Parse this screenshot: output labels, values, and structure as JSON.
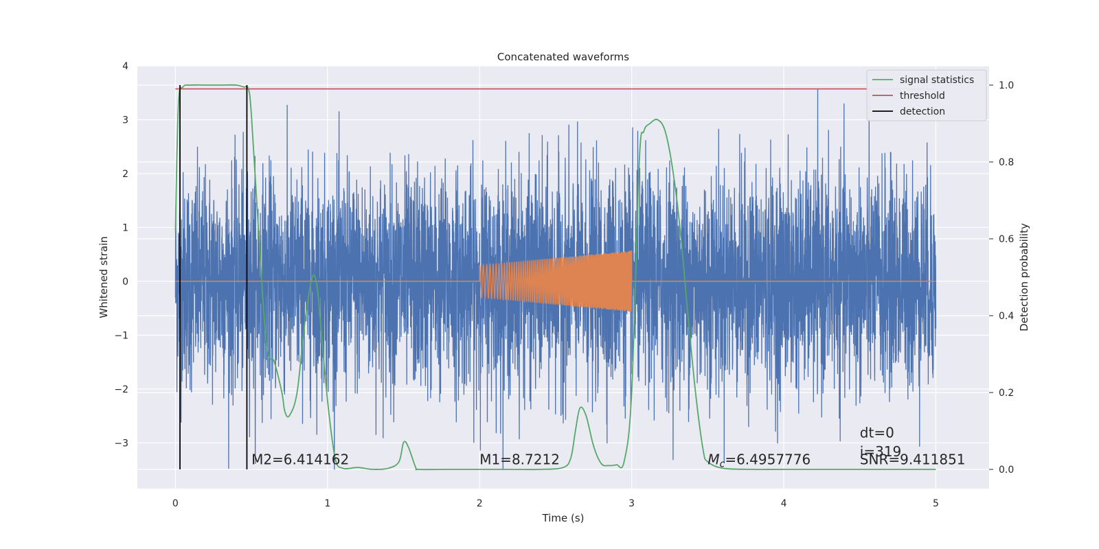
{
  "chart_data": {
    "type": "line",
    "title": "Concatenated waveforms",
    "xlabel": "Time (s)",
    "ylabel": "Whitened strain",
    "y2label": "Detection probability",
    "xlim": [
      -0.25,
      5.35
    ],
    "ylim": [
      -3.85,
      4.0
    ],
    "y2lim": [
      -0.05,
      1.05
    ],
    "x_ticks": [
      0,
      1,
      2,
      3,
      4,
      5
    ],
    "y_ticks": [
      -3,
      -2,
      -1,
      0,
      1,
      2,
      3,
      4
    ],
    "y2_ticks": [
      0.0,
      0.2,
      0.4,
      0.6,
      0.8,
      1.0
    ],
    "x_tick_labels": [
      "0",
      "1",
      "2",
      "3",
      "4",
      "5"
    ],
    "y_tick_labels": [
      "−3",
      "−2",
      "−1",
      "0",
      "1",
      "2",
      "3",
      "4"
    ],
    "y2_tick_labels": [
      "0.0",
      "0.2",
      "0.4",
      "0.6",
      "0.8",
      "1.0"
    ],
    "grid": true,
    "legend_position": "top-right",
    "colors": {
      "background": "#eaeaf2",
      "grid": "#ffffff",
      "strain": "#4c72b0",
      "waveform": "#dd8452",
      "signal": "#55a868",
      "threshold": "#c44e52",
      "detection": "#000000"
    },
    "series": [
      {
        "key": "strain",
        "axis": "left",
        "x_range": [
          0,
          5
        ],
        "typical_amplitude": 1.0,
        "peak_range": [
          -3.5,
          3.65
        ]
      },
      {
        "key": "waveform",
        "axis": "left",
        "baseline": 0,
        "chirp_start": 2.0,
        "chirp_end": 3.0,
        "amplitude_start": 0.3,
        "amplitude_end": 0.57
      },
      {
        "key": "signal",
        "name": "signal statistics",
        "axis": "right",
        "x": [
          0.0,
          0.02,
          0.05,
          0.1,
          0.2,
          0.3,
          0.4,
          0.45,
          0.48,
          0.5,
          0.55,
          0.6,
          0.65,
          0.7,
          0.72,
          0.75,
          0.8,
          0.85,
          0.9,
          0.93,
          0.95,
          1.0,
          1.05,
          1.1,
          1.2,
          1.3,
          1.4,
          1.47,
          1.5,
          1.53,
          1.58,
          1.6,
          1.8,
          2.0,
          2.2,
          2.4,
          2.55,
          2.6,
          2.63,
          2.66,
          2.7,
          2.75,
          2.8,
          2.85,
          2.9,
          2.95,
          3.0,
          3.05,
          3.08,
          3.12,
          3.17,
          3.22,
          3.27,
          3.32,
          3.37,
          3.42,
          3.47,
          3.5,
          3.6,
          3.8,
          4.0,
          4.5,
          5.0
        ],
        "y": [
          0.62,
          0.95,
          0.995,
          1.0,
          1.0,
          1.0,
          1.0,
          0.995,
          0.99,
          0.92,
          0.6,
          0.32,
          0.28,
          0.2,
          0.15,
          0.14,
          0.2,
          0.38,
          0.5,
          0.48,
          0.4,
          0.18,
          0.03,
          0.003,
          0.005,
          0.0,
          0.003,
          0.02,
          0.07,
          0.06,
          0.005,
          0.0,
          0.0,
          0.0,
          0.0,
          0.0,
          0.005,
          0.03,
          0.1,
          0.16,
          0.14,
          0.06,
          0.015,
          0.01,
          0.012,
          0.02,
          0.2,
          0.8,
          0.88,
          0.9,
          0.91,
          0.88,
          0.78,
          0.62,
          0.4,
          0.2,
          0.05,
          0.02,
          0.003,
          0.0,
          0.0,
          0.0,
          0.0
        ]
      },
      {
        "key": "threshold",
        "name": "threshold",
        "axis": "right",
        "x": [
          0,
          5
        ],
        "y": [
          0.99,
          0.99
        ]
      },
      {
        "key": "detection",
        "name": "detection",
        "axis": "right",
        "x": [
          0.03,
          0.47
        ],
        "y_range": [
          0.0,
          1.0
        ]
      }
    ],
    "annotations": [
      {
        "text": "M2=6.414162",
        "x": 0.5,
        "y": -3.4
      },
      {
        "text": "M1=8.7212",
        "x": 2.0,
        "y": -3.4
      },
      {
        "text": "=6.4957776",
        "prefix": "M",
        "subscript": "c",
        "x": 3.5,
        "y": -3.4
      },
      {
        "text": "dt=0",
        "x": 4.5,
        "y": -2.9
      },
      {
        "text": "i=319",
        "x": 4.5,
        "y": -3.25
      },
      {
        "text": "SNR=9.411851",
        "x": 4.5,
        "y": -3.4
      }
    ]
  }
}
